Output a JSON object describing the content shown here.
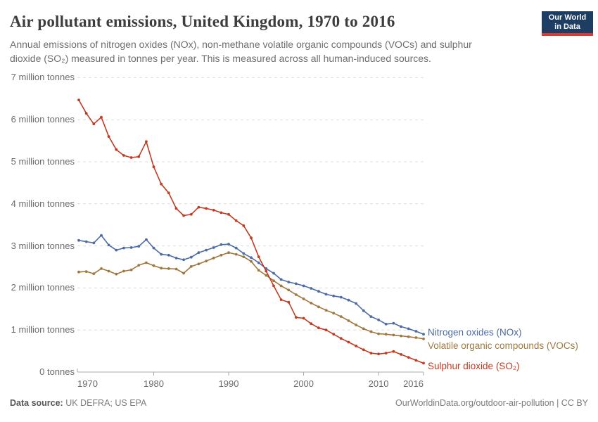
{
  "header": {
    "title": "Air pollutant emissions, United Kingdom, 1970 to 2016",
    "subtitle": "Annual emissions of nitrogen oxides (NOx), non-methane volatile organic compounds (VOCs) and sulphur dioxide (SO₂) measured in tonnes per year. This is measured across all human-induced sources.",
    "logo_line1": "Our World",
    "logo_line2": "in Data"
  },
  "chart_data": {
    "type": "line",
    "title": "Air pollutant emissions, United Kingdom, 1970 to 2016",
    "unit": "million tonnes",
    "grid": "horizontal-dashed",
    "legend_position": "right-of-line-ends",
    "xlim": [
      1970,
      2016
    ],
    "ylim": [
      0,
      7
    ],
    "x_ticks": [
      1970,
      1980,
      1990,
      2000,
      2010,
      2016
    ],
    "y_ticks": [
      {
        "value": 0,
        "label": "0 tonnes"
      },
      {
        "value": 1,
        "label": "1 million tonnes"
      },
      {
        "value": 2,
        "label": "2 million tonnes"
      },
      {
        "value": 3,
        "label": "3 million tonnes"
      },
      {
        "value": 4,
        "label": "4 million tonnes"
      },
      {
        "value": 5,
        "label": "5 million tonnes"
      },
      {
        "value": 6,
        "label": "6 million tonnes"
      },
      {
        "value": 7,
        "label": "7 million tonnes"
      }
    ],
    "x": [
      1970,
      1971,
      1972,
      1973,
      1974,
      1975,
      1976,
      1977,
      1978,
      1979,
      1980,
      1981,
      1982,
      1983,
      1984,
      1985,
      1986,
      1987,
      1988,
      1989,
      1990,
      1991,
      1992,
      1993,
      1994,
      1995,
      1996,
      1997,
      1998,
      1999,
      2000,
      2001,
      2002,
      2003,
      2004,
      2005,
      2006,
      2007,
      2008,
      2009,
      2010,
      2011,
      2012,
      2013,
      2014,
      2015,
      2016
    ],
    "series": [
      {
        "name": "Nitrogen oxides (NOx)",
        "color": "#4d6ba5",
        "values": [
          3.13,
          3.1,
          3.07,
          3.25,
          3.02,
          2.9,
          2.95,
          2.96,
          2.99,
          3.15,
          2.95,
          2.8,
          2.78,
          2.71,
          2.67,
          2.73,
          2.84,
          2.9,
          2.96,
          3.03,
          3.04,
          2.95,
          2.82,
          2.72,
          2.6,
          2.46,
          2.35,
          2.2,
          2.14,
          2.1,
          2.05,
          1.99,
          1.92,
          1.85,
          1.81,
          1.78,
          1.71,
          1.63,
          1.46,
          1.32,
          1.24,
          1.14,
          1.16,
          1.08,
          1.03,
          0.97,
          0.9
        ]
      },
      {
        "name": "Volatile organic compounds (VOCs)",
        "color": "#a0783f",
        "values": [
          2.38,
          2.39,
          2.34,
          2.46,
          2.4,
          2.33,
          2.4,
          2.43,
          2.54,
          2.6,
          2.53,
          2.47,
          2.46,
          2.45,
          2.35,
          2.51,
          2.57,
          2.64,
          2.71,
          2.78,
          2.84,
          2.8,
          2.74,
          2.63,
          2.42,
          2.3,
          2.17,
          2.05,
          1.95,
          1.84,
          1.74,
          1.64,
          1.55,
          1.47,
          1.4,
          1.32,
          1.22,
          1.12,
          1.03,
          0.96,
          0.91,
          0.9,
          0.88,
          0.86,
          0.84,
          0.82,
          0.79
        ]
      },
      {
        "name": "Sulphur dioxide (SO₂)",
        "color": "#c03b21",
        "values": [
          6.47,
          6.15,
          5.9,
          6.06,
          5.6,
          5.29,
          5.15,
          5.1,
          5.12,
          5.48,
          4.88,
          4.47,
          4.26,
          3.89,
          3.72,
          3.75,
          3.92,
          3.89,
          3.85,
          3.79,
          3.75,
          3.6,
          3.48,
          3.19,
          2.74,
          2.4,
          2.05,
          1.72,
          1.66,
          1.3,
          1.28,
          1.15,
          1.05,
          1.0,
          0.9,
          0.8,
          0.71,
          0.62,
          0.53,
          0.45,
          0.43,
          0.45,
          0.49,
          0.42,
          0.35,
          0.28,
          0.21
        ]
      }
    ]
  },
  "footer": {
    "source_label": "Data source:",
    "source_value": " UK DEFRA; US EPA",
    "citation": "OurWorldinData.org/outdoor-air-pollution | CC BY"
  }
}
